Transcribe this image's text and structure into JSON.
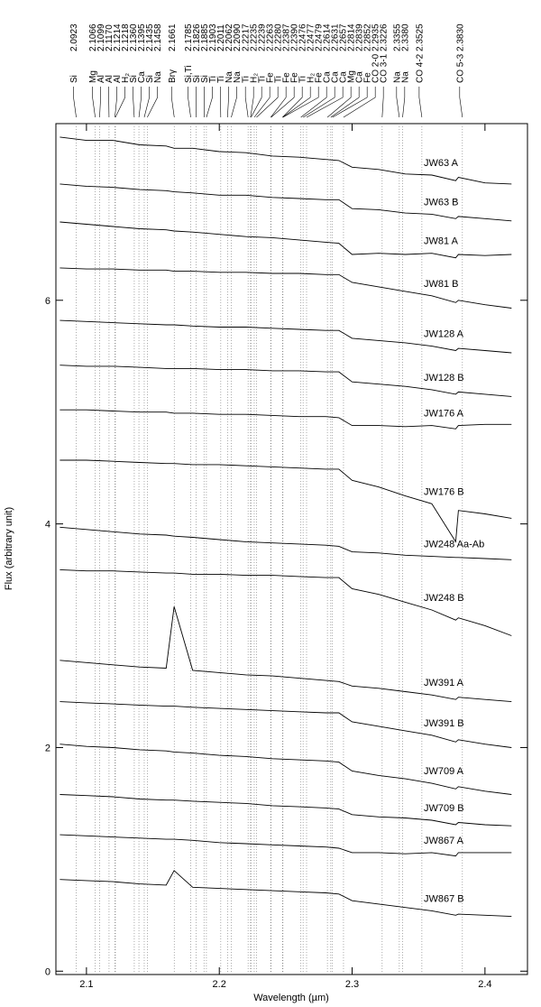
{
  "chart_data": {
    "type": "line",
    "x_label": "Wavelength (µm)",
    "y_label": "Flux (arbitrary unit)",
    "xlim": [
      2.077,
      2.432
    ],
    "ylim": [
      -0.03,
      7.58
    ],
    "xticks": [
      2.1,
      2.2,
      2.3,
      2.4
    ],
    "yticks": [
      0,
      2,
      4,
      6
    ],
    "line_style": "dotted",
    "x": [
      2.08,
      2.1,
      2.12,
      2.14,
      2.16,
      2.166,
      2.18,
      2.2,
      2.22,
      2.24,
      2.26,
      2.28,
      2.29,
      2.3,
      2.32,
      2.34,
      2.36,
      2.378,
      2.38,
      2.4,
      2.42
    ],
    "series": [
      {
        "name": "JW63 A",
        "color": "#000000",
        "values": [
          7.46,
          7.43,
          7.43,
          7.39,
          7.38,
          7.36,
          7.36,
          7.33,
          7.32,
          7.29,
          7.28,
          7.26,
          7.25,
          7.19,
          7.17,
          7.13,
          7.12,
          7.07,
          7.1,
          7.05,
          7.04
        ]
      },
      {
        "name": "JW63 B",
        "color": "#000000",
        "values": [
          7.04,
          7.02,
          7.01,
          6.99,
          6.98,
          6.97,
          6.96,
          6.94,
          6.94,
          6.92,
          6.91,
          6.9,
          6.9,
          6.82,
          6.81,
          6.78,
          6.77,
          6.73,
          6.75,
          6.73,
          6.71
        ]
      },
      {
        "name": "JW81 A",
        "color": "#000000",
        "values": [
          6.7,
          6.68,
          6.66,
          6.64,
          6.63,
          6.62,
          6.61,
          6.59,
          6.57,
          6.56,
          6.54,
          6.52,
          6.51,
          6.41,
          6.42,
          6.41,
          6.42,
          6.38,
          6.41,
          6.4,
          6.41
        ]
      },
      {
        "name": "JW81 B",
        "color": "#000000",
        "values": [
          6.29,
          6.28,
          6.28,
          6.27,
          6.27,
          6.26,
          6.26,
          6.25,
          6.25,
          6.24,
          6.24,
          6.23,
          6.23,
          6.16,
          6.12,
          6.08,
          6.04,
          5.98,
          6.0,
          5.96,
          5.93
        ]
      },
      {
        "name": "JW128 A",
        "color": "#000000",
        "values": [
          5.82,
          5.81,
          5.8,
          5.79,
          5.78,
          5.78,
          5.77,
          5.76,
          5.76,
          5.75,
          5.74,
          5.73,
          5.73,
          5.66,
          5.64,
          5.62,
          5.59,
          5.55,
          5.57,
          5.55,
          5.53
        ]
      },
      {
        "name": "JW128 B",
        "color": "#000000",
        "values": [
          5.42,
          5.41,
          5.41,
          5.4,
          5.39,
          5.39,
          5.39,
          5.38,
          5.38,
          5.37,
          5.37,
          5.36,
          5.36,
          5.27,
          5.25,
          5.23,
          5.2,
          5.16,
          5.18,
          5.16,
          5.14
        ]
      },
      {
        "name": "JW176 A",
        "color": "#000000",
        "values": [
          5.02,
          5.02,
          5.01,
          5.0,
          5.0,
          4.99,
          4.99,
          4.98,
          4.98,
          4.97,
          4.96,
          4.96,
          4.95,
          4.88,
          4.88,
          4.87,
          4.88,
          4.85,
          4.88,
          4.89,
          4.89
        ]
      },
      {
        "name": "JW176 B",
        "color": "#000000",
        "values": [
          4.57,
          4.57,
          4.56,
          4.55,
          4.54,
          4.54,
          4.53,
          4.53,
          4.52,
          4.51,
          4.5,
          4.49,
          4.49,
          4.39,
          4.33,
          4.25,
          4.18,
          3.84,
          4.12,
          4.09,
          4.05
        ]
      },
      {
        "name": "JW248 Aa-Ab",
        "color": "#000000",
        "values": [
          3.97,
          3.95,
          3.93,
          3.91,
          3.9,
          3.89,
          3.88,
          3.86,
          3.84,
          3.83,
          3.82,
          3.81,
          3.8,
          3.75,
          3.74,
          3.72,
          3.71,
          3.7,
          3.7,
          3.69,
          3.68
        ]
      },
      {
        "name": "JW248 B",
        "color": "#000000",
        "values": [
          3.59,
          3.58,
          3.58,
          3.57,
          3.56,
          3.56,
          3.55,
          3.55,
          3.54,
          3.54,
          3.53,
          3.52,
          3.52,
          3.42,
          3.37,
          3.3,
          3.23,
          3.14,
          3.16,
          3.09,
          3.0
        ]
      },
      {
        "name": "JW391 A",
        "color": "#000000",
        "values": [
          2.78,
          2.76,
          2.74,
          2.72,
          2.71,
          3.26,
          2.69,
          2.67,
          2.65,
          2.64,
          2.62,
          2.6,
          2.59,
          2.55,
          2.53,
          2.5,
          2.47,
          2.43,
          2.45,
          2.43,
          2.41
        ]
      },
      {
        "name": "JW391 B",
        "color": "#000000",
        "values": [
          2.41,
          2.4,
          2.39,
          2.38,
          2.37,
          2.37,
          2.36,
          2.35,
          2.34,
          2.33,
          2.32,
          2.31,
          2.31,
          2.23,
          2.19,
          2.15,
          2.11,
          2.05,
          2.07,
          2.03,
          2.0
        ]
      },
      {
        "name": "JW709 A",
        "color": "#000000",
        "values": [
          2.03,
          2.01,
          2.0,
          1.98,
          1.97,
          1.96,
          1.95,
          1.93,
          1.92,
          1.9,
          1.89,
          1.88,
          1.87,
          1.79,
          1.75,
          1.72,
          1.68,
          1.63,
          1.65,
          1.61,
          1.58
        ]
      },
      {
        "name": "JW709 B",
        "color": "#000000",
        "values": [
          1.58,
          1.57,
          1.56,
          1.54,
          1.53,
          1.53,
          1.52,
          1.51,
          1.5,
          1.48,
          1.47,
          1.46,
          1.45,
          1.4,
          1.38,
          1.37,
          1.35,
          1.31,
          1.33,
          1.31,
          1.3
        ]
      },
      {
        "name": "JW867 A",
        "color": "#000000",
        "values": [
          1.22,
          1.21,
          1.2,
          1.19,
          1.18,
          1.18,
          1.17,
          1.15,
          1.14,
          1.13,
          1.12,
          1.11,
          1.1,
          1.06,
          1.06,
          1.05,
          1.06,
          1.03,
          1.06,
          1.06,
          1.06
        ]
      },
      {
        "name": "JW867 B",
        "color": "#000000",
        "values": [
          0.82,
          0.81,
          0.8,
          0.78,
          0.77,
          0.9,
          0.75,
          0.74,
          0.73,
          0.72,
          0.71,
          0.7,
          0.69,
          0.63,
          0.6,
          0.57,
          0.54,
          0.5,
          0.51,
          0.5,
          0.49
        ]
      }
    ],
    "lines": [
      {
        "name": "Si",
        "wavelength": 2.0923
      },
      {
        "name": "Mg",
        "wavelength": 2.1066
      },
      {
        "name": "Al",
        "wavelength": 2.1099
      },
      {
        "name": "Al",
        "wavelength": {
          "value": 2.117,
          "label": "2.1170"
        }
      },
      {
        "name": "Al",
        "wavelength": 2.1214
      },
      {
        "name": "H₂",
        "wavelength": 2.1218
      },
      {
        "name": "Si",
        "wavelength": {
          "value": 2.136,
          "label": "2.1360"
        }
      },
      {
        "name": "Ca",
        "wavelength": 2.1395
      },
      {
        "name": "Si",
        "wavelength": 2.1435
      },
      {
        "name": "Na",
        "wavelength": 2.1458
      },
      {
        "name": "Brγ",
        "wavelength": 2.1661
      },
      {
        "name": "Si,Ti",
        "wavelength": 2.1785
      },
      {
        "name": "Si",
        "wavelength": 2.1826
      },
      {
        "name": "Si",
        "wavelength": 2.1885
      },
      {
        "name": "Ti",
        "wavelength": 2.1903
      },
      {
        "name": "Ti",
        "wavelength": 2.2011
      },
      {
        "name": "Na",
        "wavelength": 2.2062
      },
      {
        "name": "Na",
        "wavelength": {
          "value": 2.209,
          "label": "2.2090"
        }
      },
      {
        "name": "Ti",
        "wavelength": 2.2217
      },
      {
        "name": "H₂",
        "wavelength": 2.2235
      },
      {
        "name": "Ti",
        "wavelength": 2.2239
      },
      {
        "name": "Fe",
        "wavelength": 2.2263
      },
      {
        "name": "Ti",
        "wavelength": {
          "value": 2.228,
          "label": "2.2280"
        }
      },
      {
        "name": "Fe",
        "wavelength": 2.2387
      },
      {
        "name": "Fe",
        "wavelength": {
          "value": 2.239,
          "label": "2.2390"
        }
      },
      {
        "name": "Ti",
        "wavelength": 2.2476
      },
      {
        "name": "H₂",
        "wavelength": 2.2477
      },
      {
        "name": "Fe",
        "wavelength": 2.2479
      },
      {
        "name": "Ca",
        "wavelength": 2.2614
      },
      {
        "name": "Ca",
        "wavelength": 2.2631
      },
      {
        "name": "Ca",
        "wavelength": 2.2657
      },
      {
        "name": "Mg",
        "wavelength": 2.2814
      },
      {
        "name": "Ca",
        "wavelength": 2.2839
      },
      {
        "name": "Fe",
        "wavelength": 2.2852
      },
      {
        "name": "CO 2-0",
        "wavelength": 2.2935
      },
      {
        "name": "CO 3-1",
        "wavelength": 2.3226
      },
      {
        "name": "Na",
        "wavelength": 2.3355
      },
      {
        "name": "Na",
        "wavelength": {
          "value": 2.338,
          "label": "2.3380"
        }
      },
      {
        "name": "CO 4-2",
        "wavelength": 2.3525
      },
      {
        "name": "CO 5-3",
        "wavelength": {
          "value": 2.383,
          "label": "2.3830"
        }
      }
    ]
  }
}
